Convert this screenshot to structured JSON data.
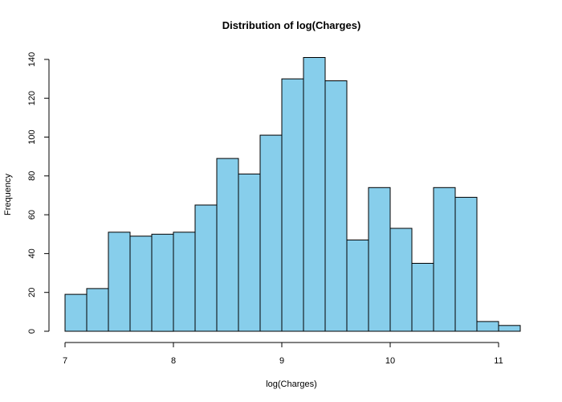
{
  "chart_data": {
    "type": "bar",
    "title": "Distribution of log(Charges)",
    "xlabel": "log(Charges)",
    "ylabel": "Frequency",
    "bin_width": 0.2,
    "bin_starts": [
      7.0,
      7.2,
      7.4,
      7.6,
      7.8,
      8.0,
      8.2,
      8.4,
      8.6,
      8.8,
      9.0,
      9.2,
      9.4,
      9.6,
      9.8,
      10.0,
      10.2,
      10.4,
      10.6,
      10.8,
      11.0
    ],
    "values": [
      19,
      22,
      51,
      49,
      50,
      51,
      65,
      89,
      81,
      101,
      130,
      141,
      129,
      47,
      74,
      53,
      35,
      74,
      69,
      5,
      3
    ],
    "xlim": [
      7.0,
      11.2
    ],
    "ylim": [
      0,
      140
    ],
    "x_ticks": [
      "7",
      "8",
      "9",
      "10",
      "11"
    ],
    "y_ticks": [
      "0",
      "20",
      "40",
      "60",
      "80",
      "100",
      "120",
      "140"
    ],
    "bar_color": "#87CEEB",
    "grid": false
  }
}
